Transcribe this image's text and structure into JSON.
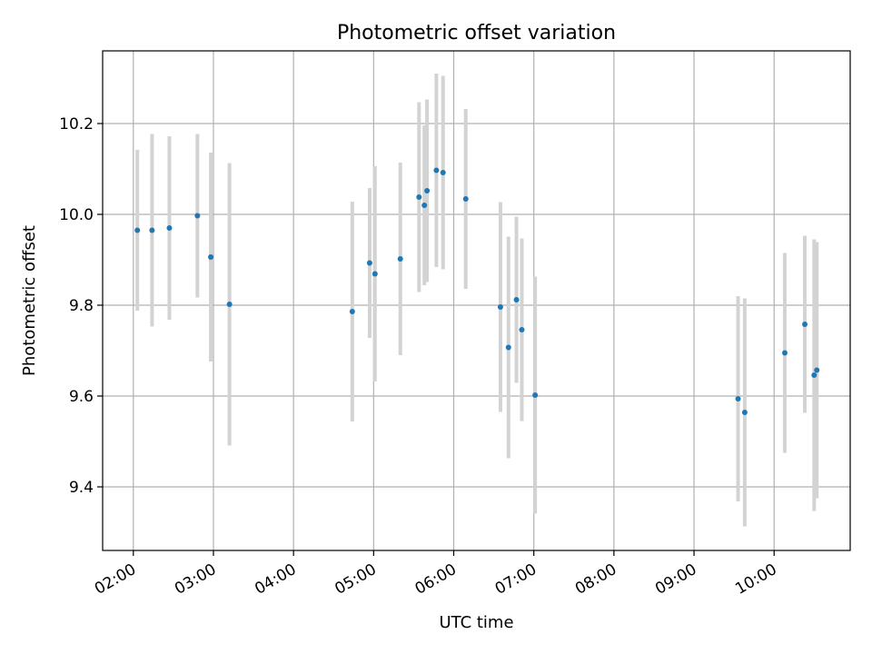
{
  "chart_data": {
    "type": "scatter",
    "title": "Photometric offset variation",
    "xlabel": "UTC time",
    "ylabel": "Photometric offset",
    "xlim": [
      "01:37",
      "10:57"
    ],
    "ylim": [
      9.26,
      10.36
    ],
    "x_ticks": [
      "02:00",
      "03:00",
      "04:00",
      "05:00",
      "06:00",
      "07:00",
      "08:00",
      "09:00",
      "10:00"
    ],
    "y_ticks": [
      9.4,
      9.6,
      9.8,
      10.0,
      10.2
    ],
    "grid": true,
    "colors": {
      "point": "#1f77b4",
      "errorbar": "#d3d3d3",
      "grid": "#b0b0b0"
    },
    "points": [
      {
        "x": "02:03",
        "y": 9.965,
        "err": 0.177
      },
      {
        "x": "02:14",
        "y": 9.965,
        "err": 0.212
      },
      {
        "x": "02:27",
        "y": 9.97,
        "err": 0.202
      },
      {
        "x": "02:48",
        "y": 9.997,
        "err": 0.18
      },
      {
        "x": "02:58",
        "y": 9.906,
        "err": 0.23
      },
      {
        "x": "03:12",
        "y": 9.802,
        "err": 0.311
      },
      {
        "x": "04:44",
        "y": 9.786,
        "err": 0.242
      },
      {
        "x": "04:57",
        "y": 9.893,
        "err": 0.165
      },
      {
        "x": "05:01",
        "y": 9.869,
        "err": 0.237
      },
      {
        "x": "05:20",
        "y": 9.902,
        "err": 0.212
      },
      {
        "x": "05:34",
        "y": 10.038,
        "err": 0.209
      },
      {
        "x": "05:38",
        "y": 10.02,
        "err": 0.176
      },
      {
        "x": "05:40",
        "y": 10.052,
        "err": 0.201
      },
      {
        "x": "05:47",
        "y": 10.097,
        "err": 0.213
      },
      {
        "x": "05:52",
        "y": 10.092,
        "err": 0.213
      },
      {
        "x": "06:09",
        "y": 10.034,
        "err": 0.198
      },
      {
        "x": "06:35",
        "y": 9.796,
        "err": 0.231
      },
      {
        "x": "06:41",
        "y": 9.707,
        "err": 0.244
      },
      {
        "x": "06:47",
        "y": 9.812,
        "err": 0.183
      },
      {
        "x": "06:51",
        "y": 9.746,
        "err": 0.201
      },
      {
        "x": "07:01",
        "y": 9.602,
        "err": 0.261
      },
      {
        "x": "09:33",
        "y": 9.594,
        "err": 0.226
      },
      {
        "x": "09:38",
        "y": 9.564,
        "err": 0.251
      },
      {
        "x": "10:08",
        "y": 9.695,
        "err": 0.22
      },
      {
        "x": "10:23",
        "y": 9.758,
        "err": 0.195
      },
      {
        "x": "10:30",
        "y": 9.646,
        "err": 0.299
      },
      {
        "x": "10:32",
        "y": 9.657,
        "err": 0.282
      }
    ]
  }
}
